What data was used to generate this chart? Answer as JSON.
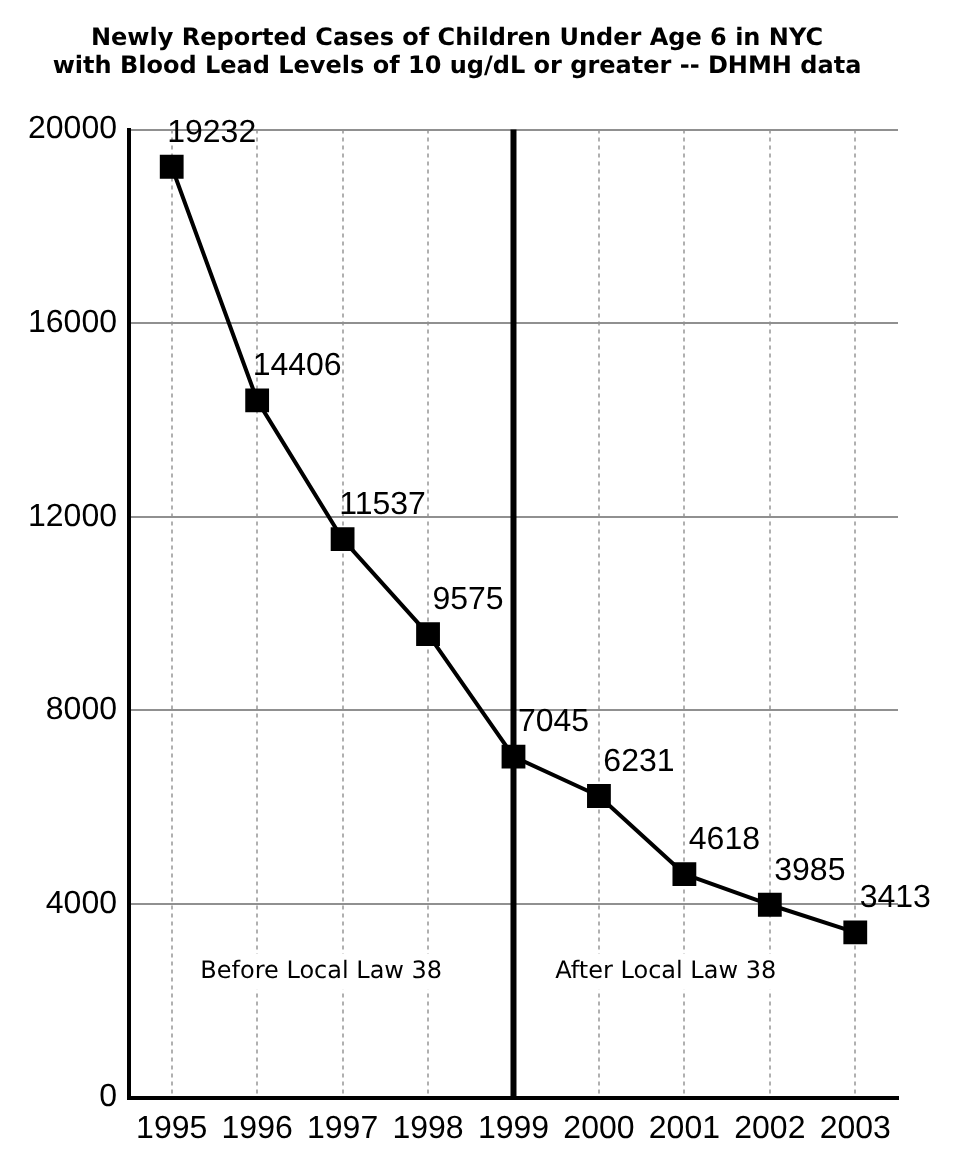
{
  "chart_data": {
    "type": "line",
    "title": "Newly Reported Cases of Children Under Age 6 in NYC\nwith Blood Lead Levels of 10 ug/dL or greater -- DHMH data",
    "categories": [
      "1995",
      "1996",
      "1997",
      "1998",
      "1999",
      "2000",
      "2001",
      "2002",
      "2003"
    ],
    "series": [
      {
        "color": "#000000",
        "values": [
          19232,
          14406,
          11537,
          9575,
          7045,
          6231,
          4618,
          3985,
          3413
        ]
      }
    ],
    "ylim": [
      0,
      20000
    ],
    "yticks": [
      0,
      4000,
      8000,
      12000,
      16000,
      20000
    ],
    "grid": true,
    "marker": "square",
    "line_style": "solid",
    "data_labels": true,
    "legend": false,
    "ref_lines": [
      {
        "axis": "x",
        "value": "1999",
        "color": "#000000"
      }
    ],
    "annotations": [
      "Before Local Law 38",
      "After Local Law 38"
    ]
  }
}
